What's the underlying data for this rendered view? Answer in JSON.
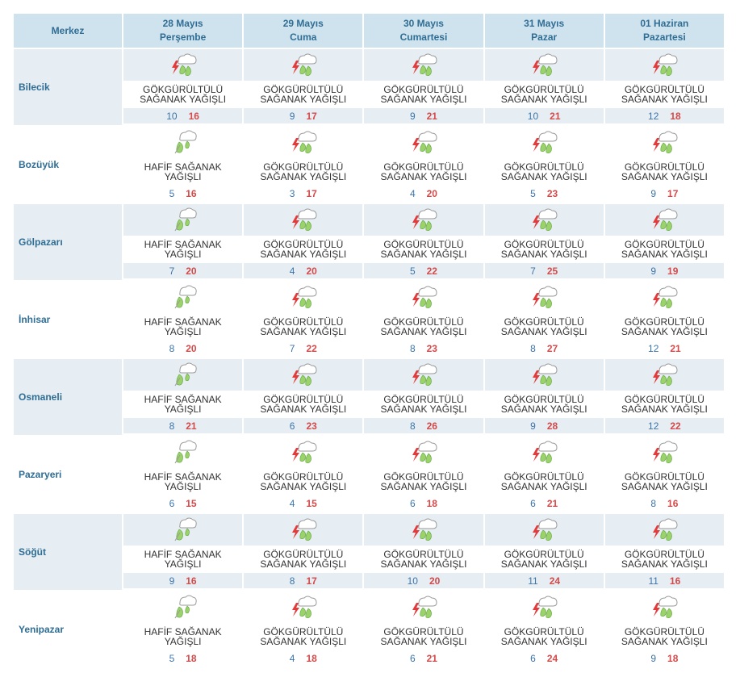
{
  "header": {
    "merkez_label": "Merkez",
    "days": [
      {
        "date": "28 Mayıs",
        "weekday": "Perşembe"
      },
      {
        "date": "29 Mayıs",
        "weekday": "Cuma"
      },
      {
        "date": "30 Mayıs",
        "weekday": "Cumartesi"
      },
      {
        "date": "31 Mayıs",
        "weekday": "Pazar"
      },
      {
        "date": "01 Haziran",
        "weekday": "Pazartesi"
      }
    ]
  },
  "colors": {
    "header_bg": "#cfe3ee",
    "header_text": "#2f6d94",
    "row_shade": "#e6eef3",
    "min_temp": "#3d74a8",
    "max_temp": "#d44a4a"
  },
  "rows": [
    {
      "city": "Bilecik",
      "cells": [
        {
          "icon": "thunder-rain-icon",
          "desc_l1": "GÖKGÜRÜLTÜLÜ",
          "desc_l2": "SAĞANAK YAĞIŞLI",
          "min": "10",
          "max": "16"
        },
        {
          "icon": "thunder-rain-icon",
          "desc_l1": "GÖKGÜRÜLTÜLÜ",
          "desc_l2": "SAĞANAK YAĞIŞLI",
          "min": "9",
          "max": "17"
        },
        {
          "icon": "thunder-rain-icon",
          "desc_l1": "GÖKGÜRÜLTÜLÜ",
          "desc_l2": "SAĞANAK YAĞIŞLI",
          "min": "9",
          "max": "21"
        },
        {
          "icon": "thunder-rain-icon",
          "desc_l1": "GÖKGÜRÜLTÜLÜ",
          "desc_l2": "SAĞANAK YAĞIŞLI",
          "min": "10",
          "max": "21"
        },
        {
          "icon": "thunder-rain-icon",
          "desc_l1": "GÖKGÜRÜLTÜLÜ",
          "desc_l2": "SAĞANAK YAĞIŞLI",
          "min": "12",
          "max": "18"
        }
      ]
    },
    {
      "city": "Bozüyük",
      "cells": [
        {
          "icon": "light-shower-icon",
          "desc_l1": "HAFİF SAĞANAK",
          "desc_l2": "YAĞIŞLI",
          "min": "5",
          "max": "16"
        },
        {
          "icon": "thunder-rain-icon",
          "desc_l1": "GÖKGÜRÜLTÜLÜ",
          "desc_l2": "SAĞANAK YAĞIŞLI",
          "min": "3",
          "max": "17"
        },
        {
          "icon": "thunder-rain-icon",
          "desc_l1": "GÖKGÜRÜLTÜLÜ",
          "desc_l2": "SAĞANAK YAĞIŞLI",
          "min": "4",
          "max": "20"
        },
        {
          "icon": "thunder-rain-icon",
          "desc_l1": "GÖKGÜRÜLTÜLÜ",
          "desc_l2": "SAĞANAK YAĞIŞLI",
          "min": "5",
          "max": "23"
        },
        {
          "icon": "thunder-rain-icon",
          "desc_l1": "GÖKGÜRÜLTÜLÜ",
          "desc_l2": "SAĞANAK YAĞIŞLI",
          "min": "9",
          "max": "17"
        }
      ]
    },
    {
      "city": "Gölpazarı",
      "cells": [
        {
          "icon": "light-shower-icon",
          "desc_l1": "HAFİF SAĞANAK",
          "desc_l2": "YAĞIŞLI",
          "min": "7",
          "max": "20"
        },
        {
          "icon": "thunder-rain-icon",
          "desc_l1": "GÖKGÜRÜLTÜLÜ",
          "desc_l2": "SAĞANAK YAĞIŞLI",
          "min": "4",
          "max": "20"
        },
        {
          "icon": "thunder-rain-icon",
          "desc_l1": "GÖKGÜRÜLTÜLÜ",
          "desc_l2": "SAĞANAK YAĞIŞLI",
          "min": "5",
          "max": "22"
        },
        {
          "icon": "thunder-rain-icon",
          "desc_l1": "GÖKGÜRÜLTÜLÜ",
          "desc_l2": "SAĞANAK YAĞIŞLI",
          "min": "7",
          "max": "25"
        },
        {
          "icon": "thunder-rain-icon",
          "desc_l1": "GÖKGÜRÜLTÜLÜ",
          "desc_l2": "SAĞANAK YAĞIŞLI",
          "min": "9",
          "max": "19"
        }
      ]
    },
    {
      "city": "İnhisar",
      "cells": [
        {
          "icon": "light-shower-icon",
          "desc_l1": "HAFİF SAĞANAK",
          "desc_l2": "YAĞIŞLI",
          "min": "8",
          "max": "20"
        },
        {
          "icon": "thunder-rain-icon",
          "desc_l1": "GÖKGÜRÜLTÜLÜ",
          "desc_l2": "SAĞANAK YAĞIŞLI",
          "min": "7",
          "max": "22"
        },
        {
          "icon": "thunder-rain-icon",
          "desc_l1": "GÖKGÜRÜLTÜLÜ",
          "desc_l2": "SAĞANAK YAĞIŞLI",
          "min": "8",
          "max": "23"
        },
        {
          "icon": "thunder-rain-icon",
          "desc_l1": "GÖKGÜRÜLTÜLÜ",
          "desc_l2": "SAĞANAK YAĞIŞLI",
          "min": "8",
          "max": "27"
        },
        {
          "icon": "thunder-rain-icon",
          "desc_l1": "GÖKGÜRÜLTÜLÜ",
          "desc_l2": "SAĞANAK YAĞIŞLI",
          "min": "12",
          "max": "21"
        }
      ]
    },
    {
      "city": "Osmaneli",
      "cells": [
        {
          "icon": "light-shower-icon",
          "desc_l1": "HAFİF SAĞANAK",
          "desc_l2": "YAĞIŞLI",
          "min": "8",
          "max": "21"
        },
        {
          "icon": "thunder-rain-icon",
          "desc_l1": "GÖKGÜRÜLTÜLÜ",
          "desc_l2": "SAĞANAK YAĞIŞLI",
          "min": "6",
          "max": "23"
        },
        {
          "icon": "thunder-rain-icon",
          "desc_l1": "GÖKGÜRÜLTÜLÜ",
          "desc_l2": "SAĞANAK YAĞIŞLI",
          "min": "8",
          "max": "26"
        },
        {
          "icon": "thunder-rain-icon",
          "desc_l1": "GÖKGÜRÜLTÜLÜ",
          "desc_l2": "SAĞANAK YAĞIŞLI",
          "min": "9",
          "max": "28"
        },
        {
          "icon": "thunder-rain-icon",
          "desc_l1": "GÖKGÜRÜLTÜLÜ",
          "desc_l2": "SAĞANAK YAĞIŞLI",
          "min": "12",
          "max": "22"
        }
      ]
    },
    {
      "city": "Pazaryeri",
      "cells": [
        {
          "icon": "light-shower-icon",
          "desc_l1": "HAFİF SAĞANAK",
          "desc_l2": "YAĞIŞLI",
          "min": "6",
          "max": "15"
        },
        {
          "icon": "thunder-rain-icon",
          "desc_l1": "GÖKGÜRÜLTÜLÜ",
          "desc_l2": "SAĞANAK YAĞIŞLI",
          "min": "4",
          "max": "15"
        },
        {
          "icon": "thunder-rain-icon",
          "desc_l1": "GÖKGÜRÜLTÜLÜ",
          "desc_l2": "SAĞANAK YAĞIŞLI",
          "min": "6",
          "max": "18"
        },
        {
          "icon": "thunder-rain-icon",
          "desc_l1": "GÖKGÜRÜLTÜLÜ",
          "desc_l2": "SAĞANAK YAĞIŞLI",
          "min": "6",
          "max": "21"
        },
        {
          "icon": "thunder-rain-icon",
          "desc_l1": "GÖKGÜRÜLTÜLÜ",
          "desc_l2": "SAĞANAK YAĞIŞLI",
          "min": "8",
          "max": "16"
        }
      ]
    },
    {
      "city": "Söğüt",
      "cells": [
        {
          "icon": "light-shower-icon",
          "desc_l1": "HAFİF SAĞANAK",
          "desc_l2": "YAĞIŞLI",
          "min": "9",
          "max": "16"
        },
        {
          "icon": "thunder-rain-icon",
          "desc_l1": "GÖKGÜRÜLTÜLÜ",
          "desc_l2": "SAĞANAK YAĞIŞLI",
          "min": "8",
          "max": "17"
        },
        {
          "icon": "thunder-rain-icon",
          "desc_l1": "GÖKGÜRÜLTÜLÜ",
          "desc_l2": "SAĞANAK YAĞIŞLI",
          "min": "10",
          "max": "20"
        },
        {
          "icon": "thunder-rain-icon",
          "desc_l1": "GÖKGÜRÜLTÜLÜ",
          "desc_l2": "SAĞANAK YAĞIŞLI",
          "min": "11",
          "max": "24"
        },
        {
          "icon": "thunder-rain-icon",
          "desc_l1": "GÖKGÜRÜLTÜLÜ",
          "desc_l2": "SAĞANAK YAĞIŞLI",
          "min": "11",
          "max": "16"
        }
      ]
    },
    {
      "city": "Yenipazar",
      "cells": [
        {
          "icon": "light-shower-icon",
          "desc_l1": "HAFİF SAĞANAK",
          "desc_l2": "YAĞIŞLI",
          "min": "5",
          "max": "18"
        },
        {
          "icon": "thunder-rain-icon",
          "desc_l1": "GÖKGÜRÜLTÜLÜ",
          "desc_l2": "SAĞANAK YAĞIŞLI",
          "min": "4",
          "max": "18"
        },
        {
          "icon": "thunder-rain-icon",
          "desc_l1": "GÖKGÜRÜLTÜLÜ",
          "desc_l2": "SAĞANAK YAĞIŞLI",
          "min": "6",
          "max": "21"
        },
        {
          "icon": "thunder-rain-icon",
          "desc_l1": "GÖKGÜRÜLTÜLÜ",
          "desc_l2": "SAĞANAK YAĞIŞLI",
          "min": "6",
          "max": "24"
        },
        {
          "icon": "thunder-rain-icon",
          "desc_l1": "GÖKGÜRÜLTÜLÜ",
          "desc_l2": "SAĞANAK YAĞIŞLI",
          "min": "9",
          "max": "18"
        }
      ]
    }
  ]
}
